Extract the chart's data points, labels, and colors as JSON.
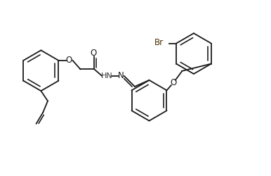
{
  "background_color": "#ffffff",
  "line_color": "#1a1a1a",
  "br_color": "#4a3000",
  "hn_color": "#3a3a3a",
  "figsize": [
    3.86,
    2.5
  ],
  "dpi": 100,
  "xlim": [
    0,
    14
  ],
  "ylim": [
    0,
    9
  ]
}
